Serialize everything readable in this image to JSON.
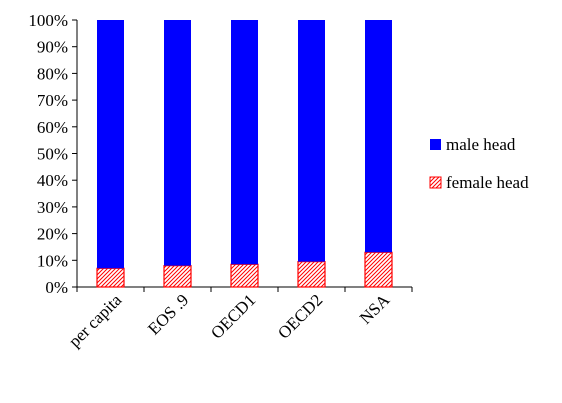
{
  "chart_data": {
    "type": "bar",
    "stacked": true,
    "percent_stacked": true,
    "title": "",
    "xlabel": "",
    "ylabel": "",
    "categories": [
      "per capita",
      "EOS .9",
      "OECD1",
      "OECD2",
      "NSA"
    ],
    "series": [
      {
        "name": "female head",
        "values": [
          7,
          8,
          8.5,
          9.5,
          13
        ],
        "color": "#ff0000",
        "pattern": "diagonal-hatch"
      },
      {
        "name": "male head",
        "values": [
          93,
          92,
          91.5,
          90.5,
          87
        ],
        "color": "#0000ff",
        "pattern": "solid"
      }
    ],
    "ylim": [
      0,
      100
    ],
    "yticks": [
      "0%",
      "10%",
      "20%",
      "30%",
      "40%",
      "50%",
      "60%",
      "70%",
      "80%",
      "90%",
      "100%"
    ],
    "legend": {
      "placement": "right",
      "entries": [
        "male head",
        "female head"
      ]
    },
    "grid": false
  }
}
